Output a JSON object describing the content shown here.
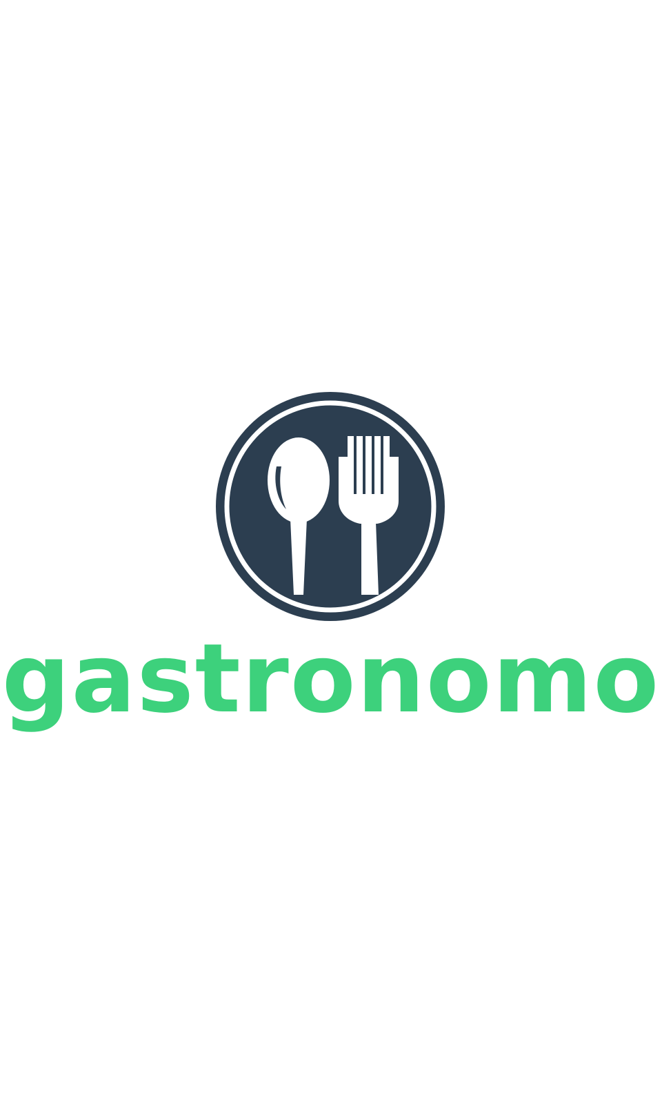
{
  "splash": {
    "brand_name": "gastronomo",
    "logo_icon": "spoon-and-fork-plate-icon"
  },
  "colors": {
    "background": "#ffffff",
    "brand_green": "#3dd17c",
    "emblem_navy": "#2c3e50",
    "emblem_ring": "#ffffff"
  }
}
